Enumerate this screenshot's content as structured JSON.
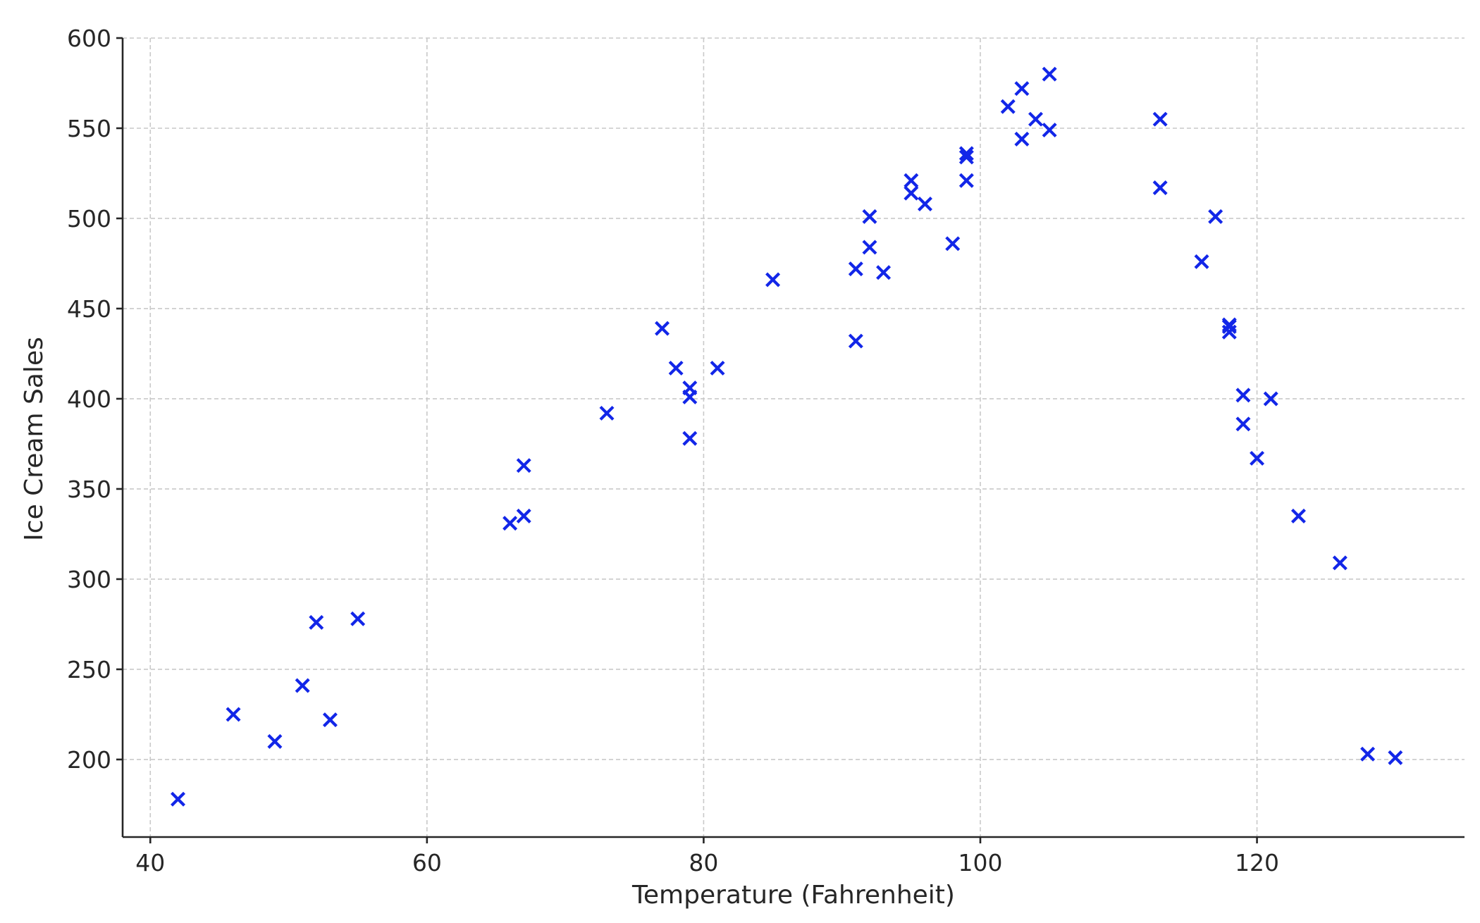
{
  "chart_data": {
    "type": "scatter",
    "title": "",
    "xlabel": "Temperature (Fahrenheit)",
    "ylabel": "Ice Cream Sales",
    "xlim": [
      38,
      135
    ],
    "ylim": [
      157,
      600
    ],
    "xticks": [
      40,
      60,
      80,
      100,
      120
    ],
    "yticks": [
      200,
      250,
      300,
      350,
      400,
      450,
      500,
      550,
      600
    ],
    "grid": true,
    "marker": "x",
    "color": "#1226e8",
    "series": [
      {
        "name": "Ice Cream Sales",
        "points": [
          [
            42,
            178
          ],
          [
            46,
            225
          ],
          [
            49,
            210
          ],
          [
            51,
            241
          ],
          [
            52,
            276
          ],
          [
            53,
            222
          ],
          [
            55,
            278
          ],
          [
            66,
            331
          ],
          [
            67,
            335
          ],
          [
            67,
            363
          ],
          [
            73,
            392
          ],
          [
            77,
            439
          ],
          [
            78,
            417
          ],
          [
            79,
            378
          ],
          [
            79,
            401
          ],
          [
            79,
            406
          ],
          [
            81,
            417
          ],
          [
            85,
            466
          ],
          [
            91,
            432
          ],
          [
            91,
            472
          ],
          [
            92,
            484
          ],
          [
            92,
            501
          ],
          [
            93,
            470
          ],
          [
            95,
            514
          ],
          [
            95,
            521
          ],
          [
            96,
            508
          ],
          [
            98,
            486
          ],
          [
            99,
            521
          ],
          [
            99,
            534
          ],
          [
            99,
            536
          ],
          [
            102,
            562
          ],
          [
            103,
            544
          ],
          [
            103,
            572
          ],
          [
            104,
            555
          ],
          [
            105,
            549
          ],
          [
            105,
            580
          ],
          [
            113,
            555
          ],
          [
            113,
            517
          ],
          [
            116,
            476
          ],
          [
            117,
            501
          ],
          [
            118,
            437
          ],
          [
            118,
            440
          ],
          [
            118,
            441
          ],
          [
            119,
            402
          ],
          [
            119,
            386
          ],
          [
            120,
            367
          ],
          [
            121,
            400
          ],
          [
            123,
            335
          ],
          [
            126,
            309
          ],
          [
            128,
            203
          ],
          [
            130,
            201
          ]
        ]
      }
    ]
  }
}
